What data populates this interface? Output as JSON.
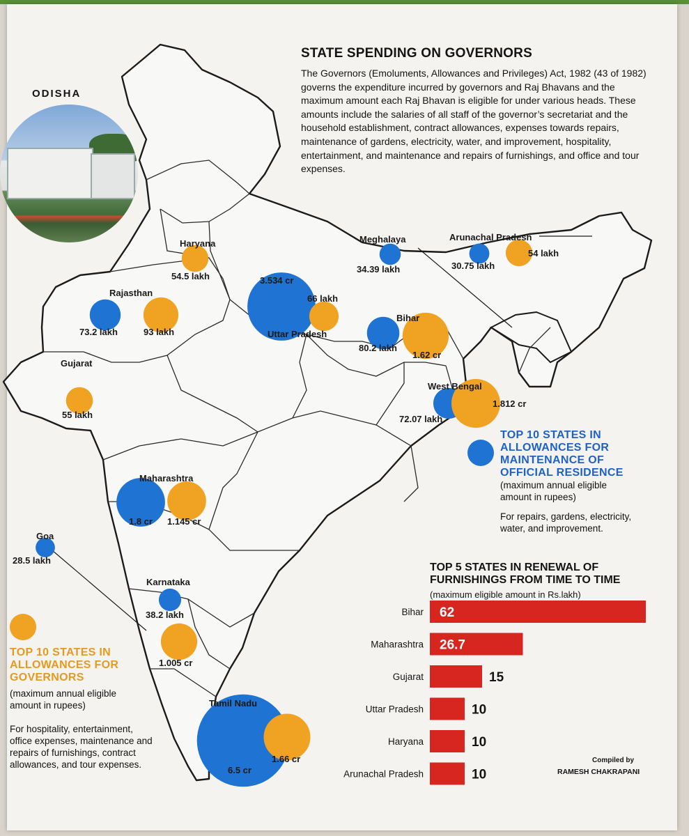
{
  "header": {
    "title": "STATE SPENDING ON GOVERNORS",
    "intro": "The Governors (Emoluments, Allowances and Privileges) Act, 1982 (43 of 1982) governs the expenditure incurred by governors and Raj Bhavans and the maximum amount each Raj Bhavan is eligible for under various heads. These amounts include the salaries of all staff of the governor’s secretariat and the household establishment, contract allowances, expenses towards repairs, maintenance of gardens, electricity, water, and improvement, hospitality, entertainment, and maintenance and repairs of furnishings, and office and tour expenses."
  },
  "photo_caption": "ODISHA",
  "colors": {
    "governors": "#f0a223",
    "residence": "#1f73d2",
    "bar": "#d7261f",
    "map_line": "#1b1b1b"
  },
  "legends": {
    "governors": {
      "title": "TOP 10 STATES IN ALLOWANCES FOR GOVERNORS",
      "subtitle": "(maximum annual eligible amount in rupees)",
      "note": "For hospitality, entertainment, office expenses, maintenance and repairs of furnishings, contract allowances, and tour expenses."
    },
    "residence": {
      "title": "TOP 10 STATES IN ALLOWANCES FOR MAINTENANCE OF OFFICIAL RESIDENCE",
      "subtitle": "(maximum annual eligible amount in rupees)",
      "note": "For repairs, gardens, electricity, water, and improvement."
    }
  },
  "map_states": [
    {
      "name": "Haryana",
      "residence": null,
      "governors": "54.5 lakh"
    },
    {
      "name": "Rajasthan",
      "residence": "73.2 lakh",
      "governors": "93 lakh"
    },
    {
      "name": "Uttar Pradesh",
      "residence": "3.534 cr",
      "governors": "66 lakh"
    },
    {
      "name": "Gujarat",
      "residence": null,
      "governors": "55 lakh"
    },
    {
      "name": "Bihar",
      "residence": "80.2 lakh",
      "governors": "1.62 cr"
    },
    {
      "name": "Meghalaya",
      "residence": "34.39 lakh",
      "governors": null
    },
    {
      "name": "Arunachal Pradesh",
      "residence": "30.75 lakh",
      "governors": "54 lakh"
    },
    {
      "name": "West Bengal",
      "residence": "72.07 lakh",
      "governors": "1.812 cr"
    },
    {
      "name": "Maharashtra",
      "residence": "1.8 cr",
      "governors": "1.145 cr"
    },
    {
      "name": "Goa",
      "residence": "28.5 lakh",
      "governors": null
    },
    {
      "name": "Karnataka",
      "residence": "38.2 lakh",
      "governors": "1.005 cr"
    },
    {
      "name": "Tamil Nadu",
      "residence": "6.5 cr",
      "governors": "1.66 cr"
    }
  ],
  "chart_data": [
    {
      "type": "bubble-map",
      "title": "TOP 10 STATES IN ALLOWANCES FOR MAINTENANCE OF OFFICIAL RESIDENCE",
      "unit": "rupees",
      "categories": [
        "Tamil Nadu",
        "Uttar Pradesh",
        "Maharashtra",
        "Bihar",
        "Rajasthan",
        "West Bengal",
        "Karnataka",
        "Meghalaya",
        "Arunachal Pradesh",
        "Goa"
      ],
      "values_lakh": [
        650,
        353.4,
        180,
        80.2,
        73.2,
        72.07,
        38.2,
        34.39,
        30.75,
        28.5
      ]
    },
    {
      "type": "bubble-map",
      "title": "TOP 10 STATES IN ALLOWANCES FOR GOVERNORS",
      "unit": "rupees",
      "categories": [
        "West Bengal",
        "Tamil Nadu",
        "Bihar",
        "Maharashtra",
        "Karnataka",
        "Rajasthan",
        "Uttar Pradesh",
        "Gujarat",
        "Haryana",
        "Arunachal Pradesh"
      ],
      "values_lakh": [
        181.2,
        166,
        162,
        114.5,
        100.5,
        93,
        66,
        55,
        54.5,
        54
      ]
    },
    {
      "type": "bar",
      "orientation": "horizontal",
      "title": "TOP 5 STATES IN RENEWAL OF FURNISHINGS FROM TIME TO TIME",
      "subtitle": "(maximum eligible amount in Rs.lakh)",
      "categories": [
        "Bihar",
        "Maharashtra",
        "Gujarat",
        "Uttar Pradesh",
        "Haryana",
        "Arunachal Pradesh"
      ],
      "values": [
        62,
        26.7,
        15,
        10,
        10,
        10
      ],
      "xlim": [
        0,
        62
      ]
    }
  ],
  "credit": {
    "label": "Compiled by",
    "name": "RAMESH CHAKRAPANI"
  }
}
